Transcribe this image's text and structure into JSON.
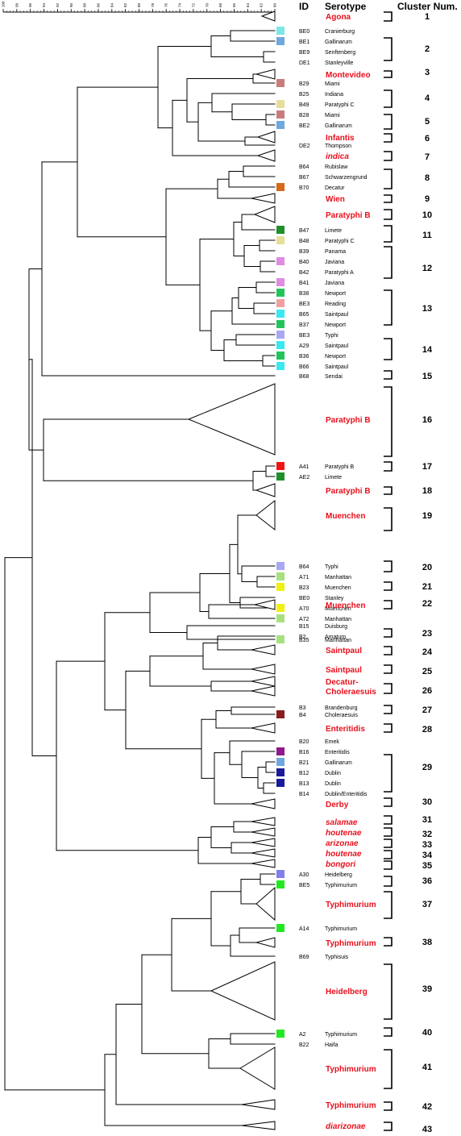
{
  "headers": {
    "id": "ID",
    "serotype": "Serotype",
    "cluster": "Cluster Num."
  },
  "scale_ticks": [
    "100",
    "98",
    "96",
    "94",
    "92",
    "90",
    "88",
    "86",
    "84",
    "82",
    "80",
    "78",
    "76",
    "74",
    "72",
    "70",
    "68",
    "66",
    "64",
    "62",
    "60"
  ],
  "colors": {
    "tree": "#000000",
    "cluster_label": "#e8101c"
  },
  "rows": [
    {
      "label": "Agona",
      "big": true
    },
    {
      "id": "BE0",
      "label": "Cranierburg",
      "swatch": "#7de6e6"
    },
    {
      "id": "BE1",
      "label": "Gallinarum",
      "swatch": "#6ea8dc"
    },
    {
      "id": "BE9",
      "label": "Senftenberg"
    },
    {
      "id": "DE1",
      "label": "Stanleyville"
    },
    {
      "label": "Montevideo",
      "big": true
    },
    {
      "id": "B29",
      "label": "Miami",
      "swatch": "#c97b7b"
    },
    {
      "id": "B25",
      "label": "Indiana"
    },
    {
      "id": "B49",
      "label": "Paratyphi C",
      "swatch": "#e6df9a"
    },
    {
      "id": "B28",
      "label": "Miami",
      "swatch": "#c97b7b"
    },
    {
      "id": "BE2",
      "label": "Gallinarum",
      "swatch": "#6ea8dc"
    },
    {
      "label": "Infantis",
      "big": true
    },
    {
      "id": "DE2",
      "label": "Thompson"
    },
    {
      "label": "indica",
      "big": true,
      "italic": true
    },
    {
      "id": "B64",
      "label": "Rubislaw"
    },
    {
      "id": "B67",
      "label": "Schwarzengrund"
    },
    {
      "id": "B70",
      "label": "Decatur",
      "swatch": "#d46a1a"
    },
    {
      "label": "Wien",
      "big": true
    },
    {
      "label": "Paratyphi B",
      "big": true
    },
    {
      "id": "B47",
      "label": "Limete",
      "swatch": "#1e8f2a"
    },
    {
      "id": "B48",
      "label": "Paratyphi C",
      "swatch": "#e6df9a"
    },
    {
      "id": "B39",
      "label": "Panama"
    },
    {
      "id": "B40",
      "label": "Javiana",
      "swatch": "#e08ce0"
    },
    {
      "id": "B42",
      "label": "Paratyphi A"
    },
    {
      "id": "B41",
      "label": "Javiana",
      "swatch": "#e08ce0"
    },
    {
      "id": "B38",
      "label": "Newport",
      "swatch": "#22c45a"
    },
    {
      "id": "BE3",
      "label": "Reading",
      "swatch": "#f0a0a0"
    },
    {
      "id": "B65",
      "label": "Saintpaul",
      "swatch": "#3ae8f0"
    },
    {
      "id": "B37",
      "label": "Newport",
      "swatch": "#22c45a"
    },
    {
      "id": "BE3",
      "label": "Typhi",
      "swatch": "#a8a8f0"
    },
    {
      "id": "A29",
      "label": "Saintpaul",
      "swatch": "#3ae8f0"
    },
    {
      "id": "B36",
      "label": "Newport",
      "swatch": "#22c45a"
    },
    {
      "id": "B66",
      "label": "Saintpaul",
      "swatch": "#3ae8f0"
    },
    {
      "id": "B68",
      "label": "Sendai"
    },
    {
      "label": "Paratyphi B",
      "big": true
    },
    {
      "id": "A41",
      "label": "Paratyphi B",
      "swatch": "#f01414"
    },
    {
      "id": "AE2",
      "label": "Limete",
      "swatch": "#1e8f2a"
    },
    {
      "label": "Paratyphi B",
      "big": true
    },
    {
      "label": "Muenchen",
      "big": true
    },
    {
      "id": "B64",
      "label": "Typhi",
      "swatch": "#a8a8f0"
    },
    {
      "id": "A71",
      "label": "Manhattan",
      "swatch": "#a8e080"
    },
    {
      "id": "B23",
      "label": "Muenchen",
      "swatch": "#f0f014"
    },
    {
      "id": "BE0",
      "label": "Stanley"
    },
    {
      "id": "A70",
      "label": "Muenchen",
      "swatch": "#f0f014"
    },
    {
      "id": "A72",
      "label": "Manhattan",
      "swatch": "#a8e080"
    },
    {
      "label": "Muenchen",
      "big": true
    },
    {
      "id": "B35",
      "label": "Manhattan",
      "swatch": "#a8e080"
    },
    {
      "id": "B15",
      "label": "Duisburg"
    },
    {
      "id": "B2",
      "label": "Amatum"
    },
    {
      "label": "Saintpaul",
      "big": true
    },
    {
      "label": "Saintpaul",
      "big": true
    },
    {
      "label": "Decatur-",
      "big": true
    },
    {
      "label": "Choleraesuis",
      "big": true
    },
    {
      "id": "B3",
      "label": "Brandenburg"
    },
    {
      "id": "B4",
      "label": "Choleraesuis",
      "swatch": "#8b1a1a"
    },
    {
      "label": "Enteritidis",
      "big": true
    },
    {
      "id": "B20",
      "label": "Emek"
    },
    {
      "id": "B16",
      "label": "Enteritidis",
      "swatch": "#8e1a8e"
    },
    {
      "id": "B21",
      "label": "Gallinarum",
      "swatch": "#6ea8dc"
    },
    {
      "id": "B12",
      "label": "Dublin",
      "swatch": "#1a1a9a"
    },
    {
      "id": "B13",
      "label": "Dublin",
      "swatch": "#1a1a9a"
    },
    {
      "id": "B14",
      "label": "Dublin/Enteritidis"
    },
    {
      "label": "Derby",
      "big": true
    },
    {
      "label": "salamae",
      "big": true,
      "italic": true
    },
    {
      "label": "houtenae",
      "big": true,
      "italic": true
    },
    {
      "label": "arizonae",
      "big": true,
      "italic": true
    },
    {
      "label": "houtenae",
      "big": true,
      "italic": true
    },
    {
      "label": "bongori",
      "big": true,
      "italic": true
    },
    {
      "id": "A30",
      "label": "Heidelberg",
      "swatch": "#8080e8"
    },
    {
      "id": "BE5",
      "label": "Typhimurium",
      "swatch": "#22e822"
    },
    {
      "label": "Typhimurium",
      "big": true
    },
    {
      "id": "A14",
      "label": "Typhimurium",
      "swatch": "#22e822"
    },
    {
      "label": "Typhimurium",
      "big": true
    },
    {
      "id": "B69",
      "label": "Typhisuis"
    },
    {
      "label": "Heidelberg",
      "big": true
    },
    {
      "id": "A2",
      "label": "Typhimurium",
      "swatch": "#22e822"
    },
    {
      "id": "B22",
      "label": "Haifa"
    },
    {
      "label": "Typhimurium",
      "big": true
    },
    {
      "label": "Typhimurium",
      "big": true
    },
    {
      "label": "diarizonae",
      "big": true,
      "italic": true
    }
  ],
  "clusters": [
    "1",
    "2",
    "3",
    "4",
    "5",
    "6",
    "7",
    "8",
    "9",
    "10",
    "11",
    "12",
    "13",
    "14",
    "15",
    "16",
    "17",
    "18",
    "19",
    "20",
    "21",
    "22",
    "23",
    "24",
    "25",
    "26",
    "27",
    "28",
    "29",
    "30",
    "31",
    "32",
    "33",
    "34",
    "35",
    "36",
    "37",
    "38",
    "39",
    "40",
    "41",
    "42",
    "43"
  ]
}
